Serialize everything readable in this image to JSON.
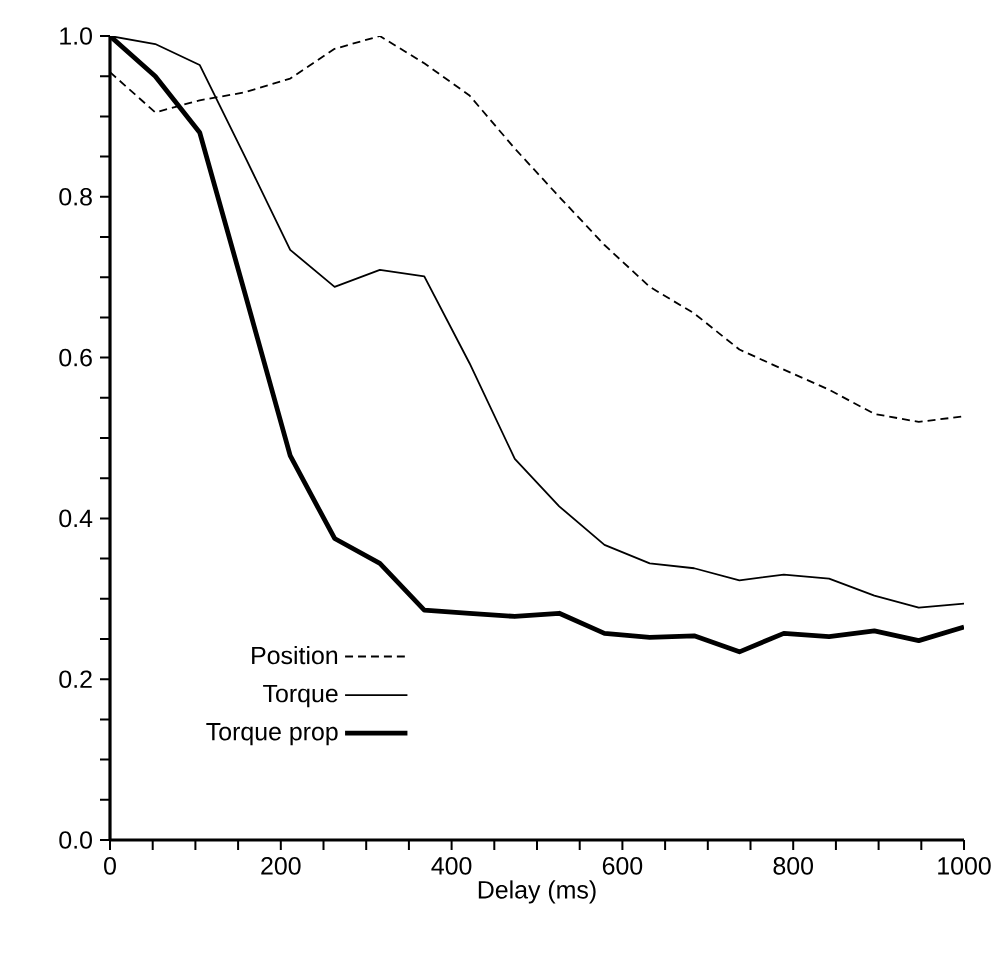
{
  "chart_data": {
    "type": "line",
    "xlabel": "Delay (ms)",
    "x": [
      0,
      53,
      105,
      158,
      211,
      263,
      316,
      368,
      421,
      474,
      526,
      579,
      632,
      684,
      737,
      789,
      842,
      895,
      947,
      1000
    ],
    "series": [
      {
        "name": "Position",
        "color": "#000000",
        "line_style": "dashed",
        "values": [
          0.955,
          0.905,
          0.92,
          0.93,
          0.947,
          0.984,
          1.0,
          0.966,
          0.926,
          0.86,
          0.8,
          0.74,
          0.688,
          0.655,
          0.61,
          0.585,
          0.56,
          0.53,
          0.52,
          0.527
        ]
      },
      {
        "name": "Torque",
        "color": "#000000",
        "line_style": "solid",
        "values": [
          1.0,
          0.99,
          0.964,
          0.85,
          0.734,
          0.688,
          0.709,
          0.701,
          0.593,
          0.474,
          0.415,
          0.367,
          0.344,
          0.338,
          0.323,
          0.33,
          0.325,
          0.304,
          0.289,
          0.294
        ]
      },
      {
        "name": "Torque prop",
        "color": "#000000",
        "line_style": "solid",
        "values": [
          1.0,
          0.95,
          0.88,
          0.68,
          0.478,
          0.375,
          0.344,
          0.286,
          0.282,
          0.278,
          0.282,
          0.257,
          0.252,
          0.254,
          0.234,
          0.257,
          0.253,
          0.26,
          0.248,
          0.265
        ]
      }
    ],
    "xlim": [
      0,
      1000
    ],
    "xticks": [
      0,
      200,
      400,
      600,
      800,
      1000
    ],
    "ylim": [
      0,
      1.0
    ],
    "yticks": [
      {
        "value": 0,
        "label": "0.0"
      },
      {
        "value": 0.2,
        "label": "0.2"
      },
      {
        "value": 0.4,
        "label": "0.4"
      },
      {
        "value": 0.6,
        "label": "0.6"
      },
      {
        "value": 0.8,
        "label": "0.8"
      },
      {
        "value": 1.0,
        "label": "1.0"
      }
    ],
    "legend": "bottom left",
    "grid": false
  }
}
